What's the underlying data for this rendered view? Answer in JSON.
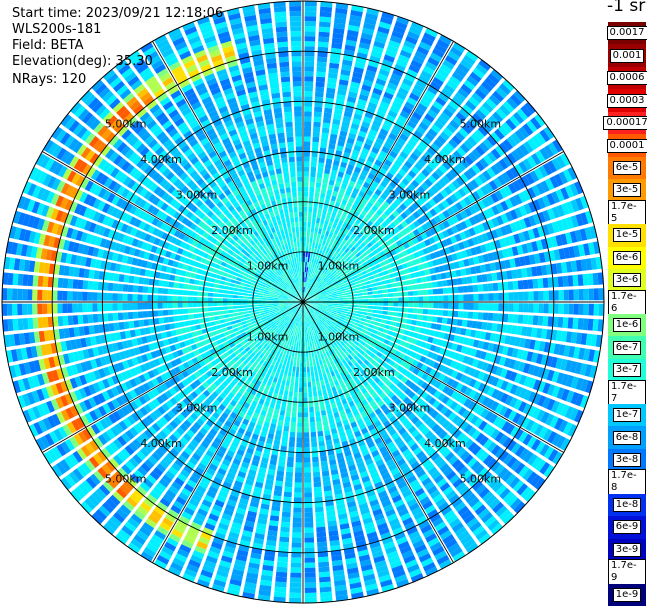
{
  "info": {
    "start_time": "Start time: 2023/09/21 12:18:06",
    "instrument": "WLS200s-181",
    "field": "Field: BETA",
    "elevation": "Elevation(deg): 35.30",
    "nrays": "NRays: 120"
  },
  "colorbar": {
    "title": "-1 sr",
    "ticks": [
      "0.0017",
      "0.001",
      "0.0006",
      "0.0003",
      "0.00017",
      "0.0001",
      "6e-5",
      "3e-5",
      "1.7e-5",
      "1e-5",
      "6e-6",
      "3e-6",
      "1.7e-6",
      "1e-6",
      "6e-7",
      "3e-7",
      "1.7e-7",
      "1e-7",
      "6e-8",
      "3e-8",
      "1.7e-8",
      "1e-8",
      "6e-9",
      "3e-9",
      "1.7e-9",
      "1e-9"
    ],
    "colors": [
      "#7a0000",
      "#9a0000",
      "#c00000",
      "#e00000",
      "#ff2020",
      "#ff5a00",
      "#ff7a00",
      "#ff9a00",
      "#ffc000",
      "#ffe000",
      "#ffff00",
      "#e0ff20",
      "#b0ff50",
      "#80ff80",
      "#40ffb0",
      "#20ffd8",
      "#00f0ff",
      "#00c8ff",
      "#00a0ff",
      "#0078ff",
      "#0050ff",
      "#0030f0",
      "#0010d8",
      "#0000c0",
      "#0000a0",
      "#00007a"
    ]
  },
  "chart_data": {
    "type": "heatmap",
    "projection": "polar PPI",
    "field": "BETA",
    "units": "-1 sr",
    "n_rays": 120,
    "range_rings_km": [
      1.0,
      2.0,
      3.0,
      4.0,
      5.0
    ],
    "ring_labels": [
      "1.00km",
      "2.00km",
      "3.00km",
      "4.00km",
      "5.00km"
    ],
    "max_range_km": 6.0,
    "azimuth_spokes_deg": [
      0,
      30,
      60,
      90,
      120,
      150,
      180,
      210,
      240,
      270,
      300,
      330
    ],
    "features": {
      "background_level": "1.7e-7",
      "near_field_level": "3e-7",
      "cloud_band_range_km": [
        5.0,
        5.3
      ],
      "cloud_band_azimuth_deg": [
        200,
        345
      ],
      "cloud_band_level": "3e-5"
    }
  }
}
